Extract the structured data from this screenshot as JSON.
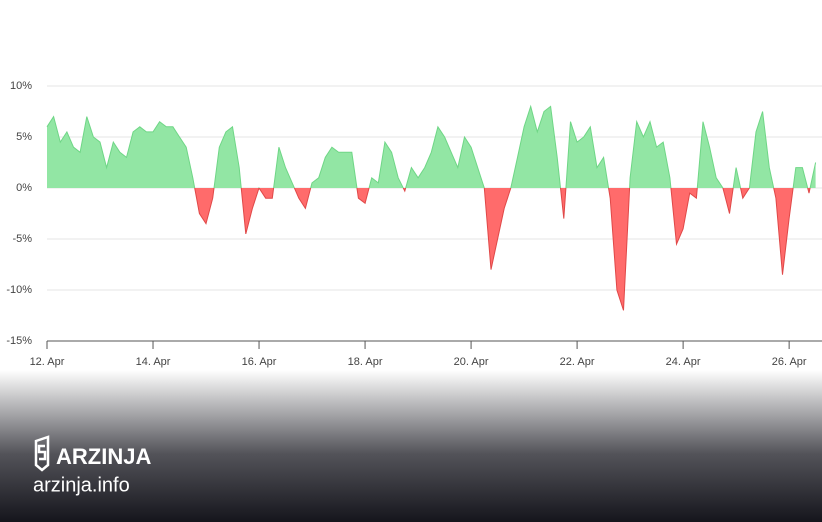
{
  "chart_data": {
    "type": "area",
    "x": [
      0,
      0.125,
      0.25,
      0.375,
      0.5,
      0.625,
      0.75,
      0.875,
      1,
      1.125,
      1.25,
      1.375,
      1.5,
      1.625,
      1.75,
      1.875,
      2,
      2.125,
      2.25,
      2.375,
      2.5,
      2.625,
      2.75,
      2.875,
      3,
      3.125,
      3.25,
      3.375,
      3.5,
      3.625,
      3.75,
      3.875,
      4,
      4.125,
      4.25,
      4.375,
      4.5,
      4.625,
      4.75,
      4.875,
      5,
      5.125,
      5.25,
      5.375,
      5.5,
      5.625,
      5.75,
      5.875,
      6,
      6.125,
      6.25,
      6.375,
      6.5,
      6.625,
      6.75,
      6.875,
      7,
      7.125,
      7.25,
      7.375,
      7.5,
      7.625,
      7.75,
      7.875,
      8,
      8.125,
      8.25,
      8.375,
      8.5,
      8.625,
      8.75,
      8.875,
      9,
      9.125,
      9.25,
      9.375,
      9.5,
      9.625,
      9.75,
      9.875,
      10,
      10.125,
      10.25,
      10.375,
      10.5,
      10.625,
      10.75,
      10.875,
      11,
      11.125,
      11.25,
      11.375,
      11.5,
      11.625,
      11.75,
      11.875,
      12,
      12.125,
      12.25,
      12.375,
      12.5,
      12.625,
      12.75,
      12.875,
      13,
      13.125,
      13.25,
      13.375,
      13.5,
      13.625,
      13.75,
      13.875,
      14,
      14.125,
      14.25,
      14.375,
      14.5
    ],
    "values": [
      6,
      7,
      4.5,
      5.5,
      4,
      3.5,
      7,
      5,
      4.5,
      2,
      4.5,
      3.5,
      3,
      5.5,
      6,
      5.5,
      5.5,
      6.5,
      6,
      6,
      5,
      4,
      1,
      -2.5,
      -3.5,
      -1,
      4,
      5.5,
      6,
      2,
      -4.5,
      -2,
      0,
      -1,
      -1,
      4,
      2,
      0.5,
      -1,
      -2,
      0.5,
      1,
      3,
      4,
      3.5,
      3.5,
      3.5,
      -1,
      -1.5,
      1,
      0.5,
      4.5,
      3.5,
      1,
      -0.3,
      2,
      1,
      2,
      3.5,
      6,
      5,
      3.5,
      2,
      5,
      4,
      2,
      0,
      -8,
      -5,
      -2,
      0,
      3,
      6,
      8,
      5.5,
      7.5,
      8,
      3,
      -3,
      6.5,
      4.5,
      5,
      6,
      2,
      3,
      -1,
      -10,
      -12,
      1,
      6.5,
      5,
      6.5,
      4,
      4.5,
      1,
      -5.5,
      -4,
      -0.5,
      -1,
      6.5,
      4,
      1,
      0,
      -2.5,
      2,
      -1,
      0,
      5.5,
      7.5,
      2,
      -1,
      -8.5,
      -3,
      2,
      2,
      -0.5,
      2.5
    ],
    "positive_color": "#92e6a4",
    "negative_color": "#ff6b6b",
    "xlim": [
      0,
      14.62
    ],
    "ylim": [
      -15,
      10
    ],
    "xticks": [
      {
        "value": 0,
        "label": "12. Apr"
      },
      {
        "value": 2,
        "label": "14. Apr"
      },
      {
        "value": 4,
        "label": "16. Apr"
      },
      {
        "value": 6,
        "label": "18. Apr"
      },
      {
        "value": 8,
        "label": "20. Apr"
      },
      {
        "value": 10,
        "label": "22. Apr"
      },
      {
        "value": 12,
        "label": "24. Apr"
      },
      {
        "value": 14,
        "label": "26. Apr"
      }
    ],
    "yticks": [
      {
        "value": 10,
        "label": "10%"
      },
      {
        "value": 5,
        "label": "5%"
      },
      {
        "value": 0,
        "label": "0%"
      },
      {
        "value": -5,
        "label": "-5%"
      },
      {
        "value": -10,
        "label": "-10%"
      },
      {
        "value": -15,
        "label": "-15%"
      }
    ],
    "grid": true
  },
  "watermark": {
    "brand": "ARZINJA",
    "url": "arzinja.info"
  }
}
